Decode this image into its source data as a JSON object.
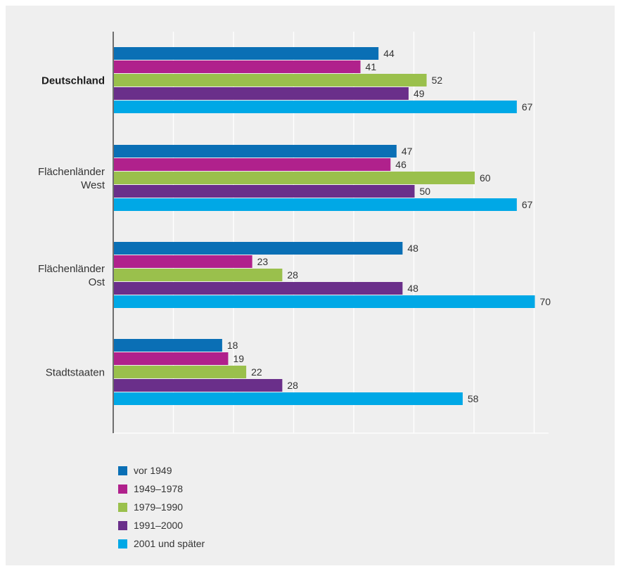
{
  "chart_data": {
    "type": "bar",
    "orientation": "horizontal",
    "categories": [
      {
        "lines": [
          "Deutschland"
        ],
        "bold": true
      },
      {
        "lines": [
          "Flächenländer",
          "West"
        ],
        "bold": false
      },
      {
        "lines": [
          "Flächenländer",
          "Ost"
        ],
        "bold": false
      },
      {
        "lines": [
          "Stadtstaaten"
        ],
        "bold": false
      }
    ],
    "series": [
      {
        "name": "vor 1949",
        "color": "#0a6fb5",
        "values": [
          44,
          47,
          48,
          18
        ]
      },
      {
        "name": "1949–1978",
        "color": "#b0218c",
        "values": [
          41,
          46,
          23,
          19
        ]
      },
      {
        "name": "1979–1990",
        "color": "#9ac04c",
        "values": [
          52,
          60,
          28,
          22
        ]
      },
      {
        "name": "1991–2000",
        "color": "#6a2f8a",
        "values": [
          49,
          50,
          48,
          28
        ]
      },
      {
        "name": "2001 und später",
        "color": "#00a8e6",
        "values": [
          67,
          67,
          70,
          58
        ]
      }
    ],
    "xlim": [
      0,
      73
    ],
    "xgrid_step": 10,
    "grid": true,
    "legend_position": "bottom-left"
  }
}
